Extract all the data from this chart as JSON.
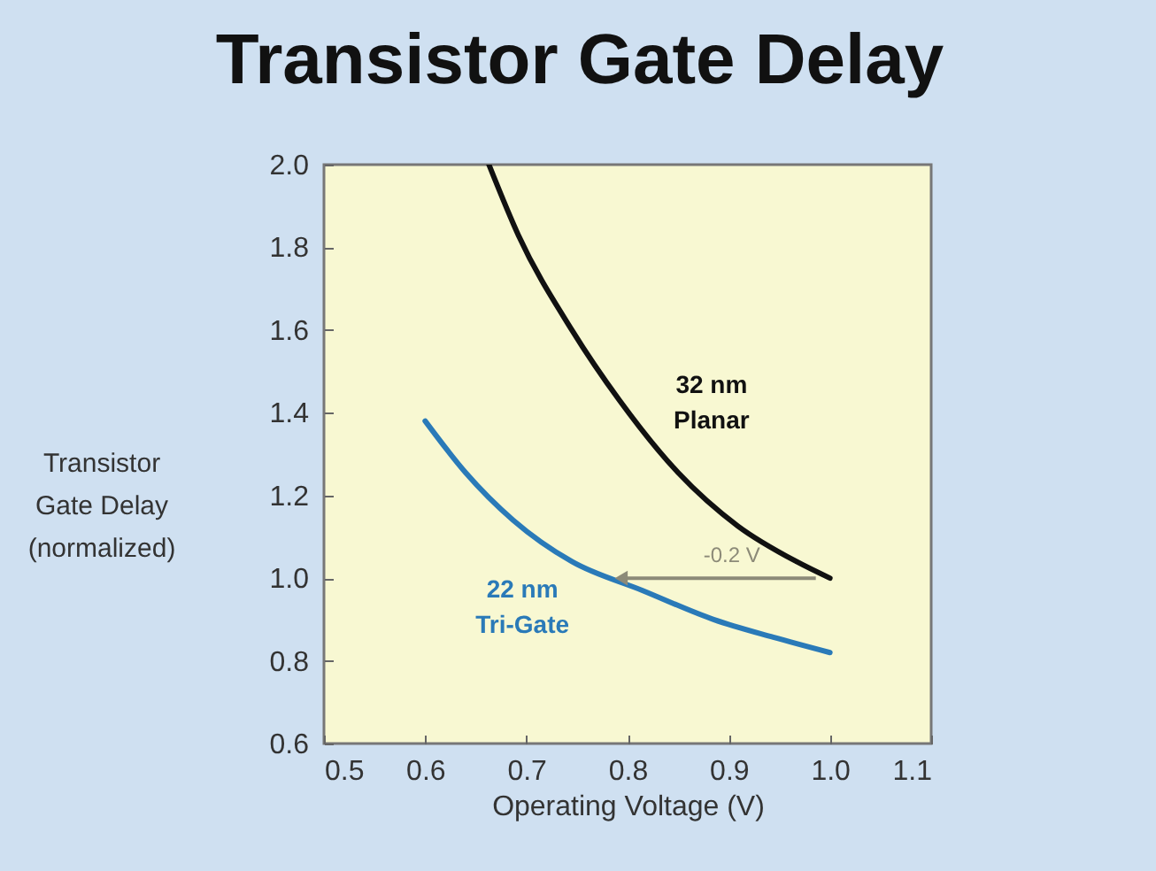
{
  "chart_data": {
    "type": "line",
    "title": "Transistor Gate Delay",
    "xlabel": "Operating Voltage (V)",
    "ylabel": "Transistor Gate Delay (normalized)",
    "xlim": [
      0.5,
      1.1
    ],
    "xticks": [
      0.5,
      0.6,
      0.7,
      0.8,
      0.9,
      {
        "value": 1,
        "label": "1.0"
      },
      1.1
    ],
    "ylim": [
      0.6,
      2.0
    ],
    "yticks": [
      0.6,
      0.8,
      {
        "value": 1,
        "label": "1.0"
      },
      1.2,
      1.4,
      1.6,
      1.8,
      {
        "value": 2,
        "label": "2.0"
      }
    ],
    "series": [
      {
        "name": "32 nm Planar",
        "color": "#111111",
        "x": [
          0.663,
          0.692,
          0.745,
          0.792,
          0.85,
          0.909,
          0.967,
          1.0
        ],
        "values": [
          2.0,
          1.83,
          1.6,
          1.43,
          1.255,
          1.126,
          1.04,
          1.0
        ]
      },
      {
        "name": "22 nm Tri-Gate",
        "color": "#2a7ab8",
        "x": [
          0.6,
          0.64,
          0.687,
          0.745,
          0.815,
          0.885,
          0.944,
          1.0
        ],
        "values": [
          1.38,
          1.255,
          1.14,
          1.04,
          0.97,
          0.9,
          0.857,
          0.82
        ]
      }
    ],
    "annotations": [
      "-0.2 V"
    ],
    "grid": false,
    "legend": false,
    "line_style": "solid"
  }
}
